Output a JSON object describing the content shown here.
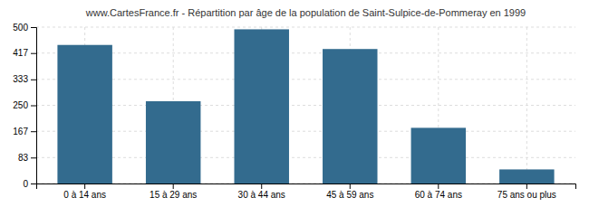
{
  "chart_data": {
    "type": "bar",
    "title": "www.CartesFrance.fr - Répartition par âge de la population de Saint-Sulpice-de-Pommeray en 1999",
    "categories": [
      "0 à 14 ans",
      "15 à 29 ans",
      "30 à 44 ans",
      "45 à 59 ans",
      "60 à 74 ans",
      "75 ans ou plus"
    ],
    "values": [
      443,
      263,
      493,
      430,
      178,
      45
    ],
    "color": "#336b8e",
    "ylim": [
      0,
      500
    ],
    "yticks": [
      0,
      83,
      167,
      250,
      333,
      417,
      500
    ],
    "grid": true
  }
}
